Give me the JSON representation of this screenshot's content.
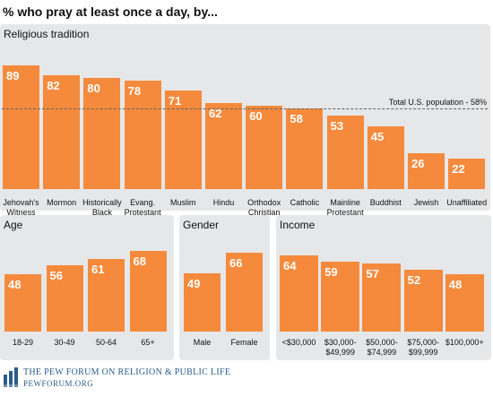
{
  "title": "% who pray at least once a day, by...",
  "reference": {
    "label": "Total U.S. population - 58%",
    "value": 58
  },
  "footer": {
    "org": "The Pew Forum on Religion & Public Life",
    "site": "pewforum.org"
  },
  "colors": {
    "bar": "#f58a3c",
    "panel": "#e6e7e8",
    "brand": "#2b5d8a"
  },
  "chart_data": [
    {
      "type": "bar",
      "title": "Religious tradition",
      "categories": [
        "Jehovah's Witness",
        "Mormon",
        "Historically Black Protestant",
        "Evang. Protestant",
        "Muslim",
        "Hindu",
        "Orthodox Christian",
        "Catholic",
        "Mainline Protestant",
        "Buddhist",
        "Jewish",
        "Unaffiliated"
      ],
      "category_lines": [
        [
          "Jehovah's",
          "Witness"
        ],
        [
          "Mormon"
        ],
        [
          "Historically",
          "Black",
          "Protestant"
        ],
        [
          "Evang.",
          "Protestant"
        ],
        [
          "Muslim"
        ],
        [
          "Hindu"
        ],
        [
          "Orthodox",
          "Christian"
        ],
        [
          "Catholic"
        ],
        [
          "Mainline",
          "Protestant"
        ],
        [
          "Buddhist"
        ],
        [
          "Jewish"
        ],
        [
          "Unaffiliated"
        ]
      ],
      "values": [
        89,
        82,
        80,
        78,
        71,
        62,
        60,
        58,
        53,
        45,
        26,
        22
      ],
      "reference_line": 58
    },
    {
      "type": "bar",
      "title": "Age",
      "categories": [
        "18-29",
        "30-49",
        "50-64",
        "65+"
      ],
      "category_lines": [
        [
          "18-29"
        ],
        [
          "30-49"
        ],
        [
          "50-64"
        ],
        [
          "65+"
        ]
      ],
      "values": [
        48,
        56,
        61,
        68
      ]
    },
    {
      "type": "bar",
      "title": "Gender",
      "categories": [
        "Male",
        "Female"
      ],
      "category_lines": [
        [
          "Male"
        ],
        [
          "Female"
        ]
      ],
      "values": [
        49,
        66
      ]
    },
    {
      "type": "bar",
      "title": "Income",
      "categories": [
        "<$30,000",
        "$30,000-$49,999",
        "$50,000-$74,999",
        "$75,000-$99,999",
        "$100,000+"
      ],
      "category_lines": [
        [
          "<$30,000"
        ],
        [
          "$30,000-",
          "$49,999"
        ],
        [
          "$50,000-",
          "$74,999"
        ],
        [
          "$75,000-",
          "$99,999"
        ],
        [
          "$100,000+"
        ]
      ],
      "values": [
        64,
        59,
        57,
        52,
        48
      ]
    }
  ]
}
